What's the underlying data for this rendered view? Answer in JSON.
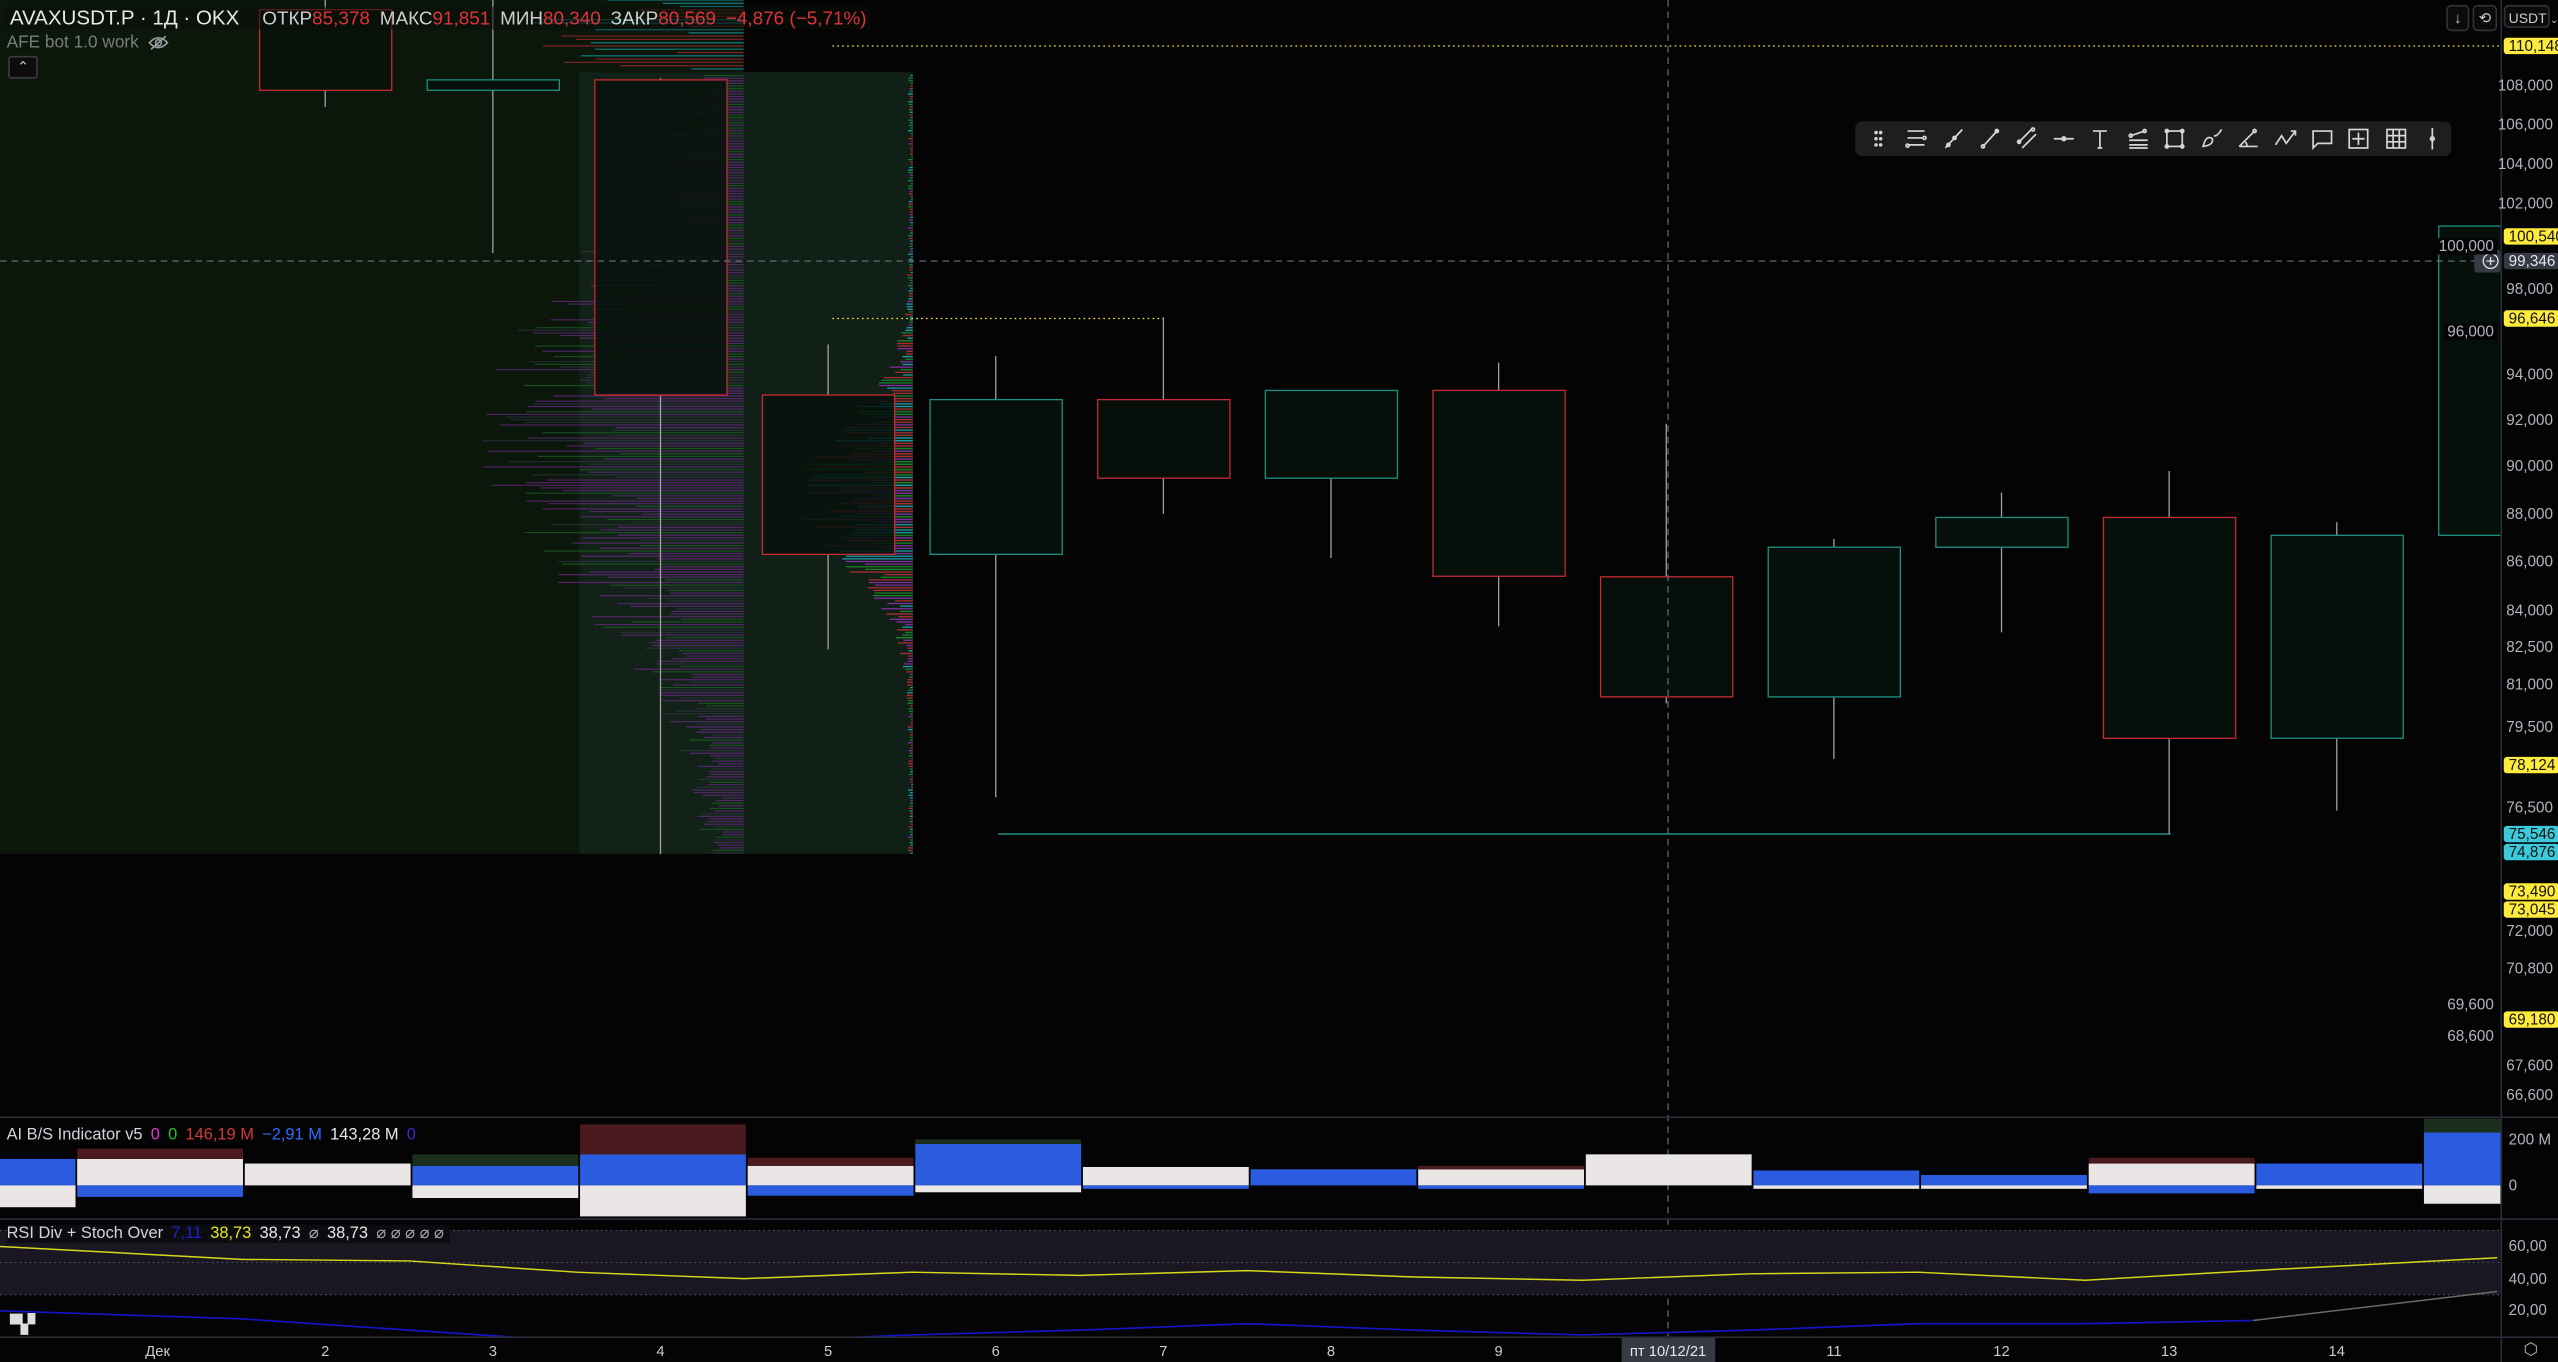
{
  "header": {
    "symbol": "AVAXUSDT.P · 1Д · OKX",
    "open_label": "ОТКР",
    "open": "85,378",
    "high_label": "МАКС",
    "high": "91,851",
    "low_label": "МИН",
    "low": "80,340",
    "close_label": "ЗАКР",
    "close": "80,569",
    "change": "−4,876 (−5,71%)"
  },
  "indicator_bot": {
    "name": "AFE bot 1.0 work",
    "icon": "eye-off-icon"
  },
  "top_right": {
    "scroll_icon": "arrow-down-icon",
    "reset_icon": "auto-scale-icon",
    "currency": "USDT"
  },
  "toolbar": {
    "tools": [
      "drag-handle",
      "horizontal-lines",
      "trend-line",
      "ray",
      "parallel-channel",
      "horizontal-ray",
      "text",
      "fib-retracement",
      "rectangle",
      "brush",
      "trend-angle",
      "path",
      "callout",
      "long-position",
      "grid",
      "vertical-line"
    ]
  },
  "price_axis": {
    "ticks": [
      "108,000",
      "106,000",
      "104,000",
      "102,000",
      "100,000",
      "98,000",
      "96,000",
      "94,000",
      "92,000",
      "90,000",
      "88,000",
      "86,000",
      "84,000",
      "82,500",
      "81,000",
      "79,500",
      "76,500",
      "72,000",
      "70,800",
      "69,600",
      "68,600",
      "67,600",
      "66,600"
    ],
    "labels": [
      {
        "text": "110,148",
        "color": "#ffeb3b"
      },
      {
        "text": "100,540",
        "color": "#ffeb3b"
      },
      {
        "text": "96,646",
        "color": "#ffeb3b"
      },
      {
        "text": "78,124",
        "color": "#ffeb3b"
      },
      {
        "text": "75,546",
        "color": "#3cc9d9"
      },
      {
        "text": "74,876",
        "color": "#3cc9d9"
      },
      {
        "text": "73,490",
        "color": "#ffeb3b"
      },
      {
        "text": "73,045",
        "color": "#ffeb3b"
      },
      {
        "text": "69,180",
        "color": "#ffeb3b"
      }
    ],
    "crosshair_price": "99,346"
  },
  "colors": {
    "up": "#1e8f80",
    "down": "#c62a32",
    "wick": "#a0a0a0",
    "level_yellow": "#ffeb3b",
    "level_teal": "#1e8f80"
  },
  "candles": [
    {
      "date": "2",
      "open": 112000,
      "high": 113000,
      "low": 106900,
      "close": 107750
    },
    {
      "date": "3",
      "open": 107750,
      "high": 112500,
      "low": 99700,
      "close": 108300
    },
    {
      "date": "4",
      "open": 108300,
      "high": 108400,
      "low": 74800,
      "close": 93100
    },
    {
      "date": "5",
      "open": 93100,
      "high": 95400,
      "low": 82400,
      "close": 86300
    },
    {
      "date": "6",
      "open": 86300,
      "high": 94850,
      "low": 76900,
      "close": 92900
    },
    {
      "date": "7",
      "open": 92900,
      "high": 96700,
      "low": 88000,
      "close": 89500
    },
    {
      "date": "8",
      "open": 89500,
      "high": 93300,
      "low": 86150,
      "close": 93300
    },
    {
      "date": "9",
      "open": 93300,
      "high": 94550,
      "low": 83350,
      "close": 85400
    },
    {
      "date": "10",
      "open": 85378,
      "high": 91851,
      "low": 80340,
      "close": 80569
    },
    {
      "date": "11",
      "open": 80569,
      "high": 86950,
      "low": 78350,
      "close": 86600
    },
    {
      "date": "12",
      "open": 86600,
      "high": 88900,
      "low": 83100,
      "close": 87850
    },
    {
      "date": "13",
      "open": 87850,
      "high": 89800,
      "low": 75546,
      "close": 79100
    },
    {
      "date": "14",
      "open": 79100,
      "high": 87650,
      "low": 76400,
      "close": 87100
    },
    {
      "date": "15",
      "open": 87100,
      "high": 101000,
      "low": 87100,
      "close": 101000
    }
  ],
  "ai_bs": {
    "title": "AI B/S Indicator v5",
    "values": [
      {
        "text": "0",
        "color": "#e23bd6"
      },
      {
        "text": "0",
        "color": "#22c02a"
      },
      {
        "text": "146,19 M",
        "color": "#d33a3a"
      },
      {
        "text": "−2,91 M",
        "color": "#2f6bff"
      },
      {
        "text": "143,28 M",
        "color": "#e8e8e8"
      },
      {
        "text": "0",
        "color": "#3a2fd0"
      }
    ],
    "axis": [
      "200 M",
      "0"
    ],
    "bars": [
      {
        "sell": 115,
        "buy": 115,
        "white": -95,
        "tint": "red"
      },
      {
        "sell": 160,
        "buy": -50,
        "white": 115,
        "tint": "red",
        "white_up": true
      },
      {
        "sell": 95,
        "buy": 0,
        "white": 95,
        "tint": "red",
        "white_up": true
      },
      {
        "sell": 0,
        "buy": 85,
        "white": -55,
        "tint": "green",
        "extra": 135
      },
      {
        "sell": 265,
        "buy": 135,
        "white": -135,
        "tint": "red"
      },
      {
        "sell": 120,
        "buy": -45,
        "white": 85,
        "tint": "red",
        "white_up": true
      },
      {
        "sell": 0,
        "buy": 180,
        "white": -30,
        "tint": "green",
        "extra": 200
      },
      {
        "sell": 80,
        "buy": -15,
        "white": 80,
        "tint": "red",
        "white_up": true
      },
      {
        "sell": 0,
        "buy": 70,
        "white": 0,
        "tint": "none"
      },
      {
        "sell": 85,
        "buy": -15,
        "white": 70,
        "tint": "red",
        "white_up": true
      },
      {
        "sell": 0,
        "buy": 0,
        "white": 135,
        "tint": "none",
        "white_up": true
      },
      {
        "sell": 0,
        "buy": 65,
        "white": -15,
        "tint": "none"
      },
      {
        "sell": 0,
        "buy": 45,
        "white": -15,
        "tint": "none"
      },
      {
        "sell": 120,
        "buy": -35,
        "white": 95,
        "tint": "red",
        "white_up": true
      },
      {
        "sell": 0,
        "buy": 95,
        "white": -15,
        "tint": "none"
      },
      {
        "sell": 0,
        "buy": 230,
        "white": -80,
        "tint": "green",
        "extra": 290
      }
    ]
  },
  "rsi": {
    "title": "RSI Div + Stoch Over",
    "values": [
      {
        "text": "7,11",
        "color": "#1f1fd6"
      },
      {
        "text": "38,73",
        "color": "#e8e81a"
      },
      {
        "text": "38,73",
        "color": "#e8e8e8"
      },
      {
        "text": "⌀",
        "color": "#aaaaaa"
      },
      {
        "text": "38,73",
        "color": "#e8e8e8"
      },
      {
        "text": "⌀ ⌀ ⌀ ⌀ ⌀",
        "color": "#aaaaaa"
      }
    ],
    "axis": [
      "60,00",
      "40,00",
      "20,00"
    ],
    "band": [
      30,
      70
    ],
    "x_days": [
      "1",
      "2",
      "3",
      "4",
      "5",
      "6",
      "7",
      "8",
      "9",
      "10",
      "11",
      "12",
      "13",
      "14",
      "15"
    ],
    "rsi_line": [
      60,
      52,
      51,
      44,
      40,
      44,
      42,
      45,
      41,
      39,
      43,
      44,
      39,
      45,
      53
    ],
    "stoch_line": [
      20,
      15,
      8,
      1,
      1,
      5,
      8,
      12,
      8,
      5,
      8,
      12,
      12,
      14,
      32
    ]
  },
  "time_axis": {
    "labels": [
      "Дек",
      "2",
      "3",
      "4",
      "5",
      "6",
      "7",
      "8",
      "9",
      "11",
      "12",
      "13",
      "14"
    ],
    "crosshair_date": "пт 10/12/21",
    "settings_icon": "gear-icon"
  }
}
